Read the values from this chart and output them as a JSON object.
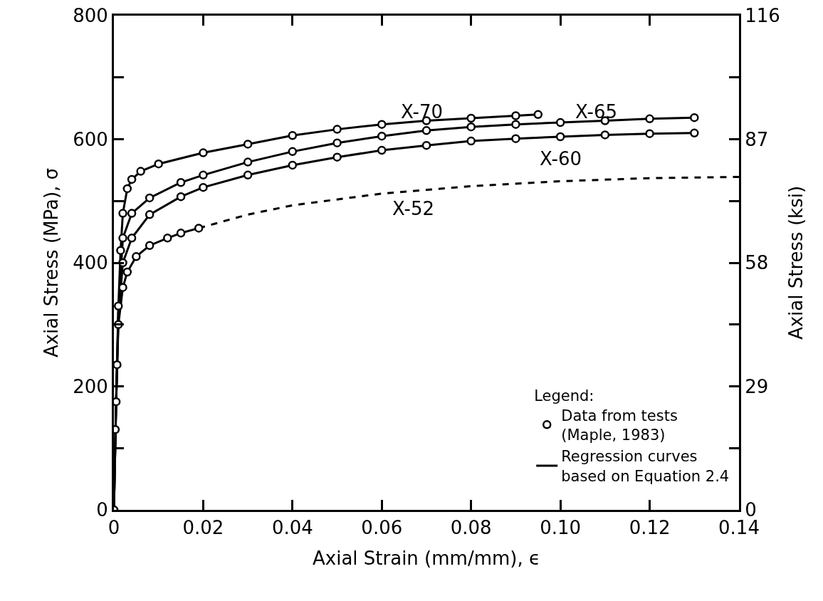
{
  "chart_data": {
    "type": "line",
    "xlabel": "Axial Strain (mm/mm), ϵ",
    "ylabel": "Axial Stress (MPa), σ",
    "y2label": "Axial Stress (ksi)",
    "legend_title": "Legend:",
    "legend": "bottom right",
    "xlim": [
      0,
      0.14
    ],
    "xticks": [
      0,
      0.02,
      0.04,
      0.06,
      0.08,
      {
        "value": 0.1,
        "label": "0.10"
      },
      0.12,
      0.14
    ],
    "ylim": [
      0,
      800
    ],
    "yticks": [
      0,
      {
        "value": 100,
        "label": null
      },
      200,
      {
        "value": 300,
        "label": null
      },
      400,
      {
        "value": 500,
        "label": null
      },
      600,
      {
        "value": 700,
        "label": null
      },
      800
    ],
    "y2lim": [
      0,
      116
    ],
    "y2ticks": [
      0,
      {
        "value": 14.5,
        "label": null
      },
      29,
      {
        "value": 43.5,
        "label": null
      },
      58,
      {
        "value": 72.5,
        "label": null
      },
      87,
      {
        "value": 101.5,
        "label": null
      },
      116
    ],
    "annotations": [
      "X-70",
      "X-65",
      "X-60",
      "X-52"
    ],
    "series": [
      {
        "color": "#000000",
        "marker": "none",
        "line_style": "solid",
        "name": "Regression curves\nbased on Equation 2.4",
        "x": [
          0,
          0.0005,
          0.001,
          0.0015,
          0.002,
          0.003,
          0.004,
          0.006,
          0.01,
          0.02,
          0.03,
          0.04,
          0.05,
          0.06,
          0.07,
          0.08,
          0.09,
          0.095
        ],
        "values": [
          0,
          175,
          330,
          420,
          480,
          520,
          535,
          548,
          560,
          578,
          592,
          606,
          616,
          624,
          630,
          634,
          638,
          640
        ]
      },
      {
        "color": "#000000",
        "marker": "none",
        "line_style": "solid",
        "x": [
          0,
          0.0005,
          0.001,
          0.002,
          0.004,
          0.008,
          0.015,
          0.02,
          0.03,
          0.04,
          0.05,
          0.06,
          0.07,
          0.08,
          0.09,
          0.1,
          0.11,
          0.12,
          0.13
        ],
        "values": [
          0,
          175,
          320,
          440,
          480,
          505,
          530,
          542,
          563,
          580,
          594,
          605,
          614,
          620,
          624,
          627,
          630,
          633,
          635
        ]
      },
      {
        "color": "#000000",
        "marker": "none",
        "line_style": "solid",
        "x": [
          0,
          0.0005,
          0.001,
          0.002,
          0.004,
          0.008,
          0.015,
          0.02,
          0.03,
          0.04,
          0.05,
          0.06,
          0.07,
          0.08,
          0.09,
          0.1,
          0.11,
          0.12,
          0.13
        ],
        "values": [
          0,
          175,
          310,
          400,
          440,
          478,
          507,
          522,
          542,
          558,
          571,
          582,
          590,
          597,
          601,
          604,
          607,
          609,
          610
        ]
      },
      {
        "color": "#000000",
        "marker": "none",
        "line_style": "solid",
        "x": [
          0,
          0.0005,
          0.001,
          0.002,
          0.003,
          0.005,
          0.008,
          0.012,
          0.015,
          0.019
        ],
        "values": [
          0,
          175,
          300,
          360,
          385,
          410,
          428,
          440,
          448,
          456
        ]
      },
      {
        "color": "#000000",
        "marker": "none",
        "line_style": "dashed",
        "x": [
          0.019,
          0.03,
          0.04,
          0.06,
          0.08,
          0.1,
          0.12,
          0.14
        ],
        "values": [
          456,
          478,
          493,
          512,
          524,
          532,
          537,
          539
        ]
      },
      {
        "type": "scatter",
        "color": "#000000",
        "marker": "circle",
        "name": "Data from tests\n(Maple, 1983)",
        "x": [
          0,
          0.0003,
          0.0005,
          0.0007,
          0.001,
          0.001,
          0.0015,
          0.002,
          0.003,
          0.004,
          0.006,
          0.01,
          0.02,
          0.03,
          0.04,
          0.05,
          0.06,
          0.07,
          0.08,
          0.09,
          0.095,
          0.002,
          0.004,
          0.008,
          0.015,
          0.02,
          0.03,
          0.04,
          0.05,
          0.06,
          0.07,
          0.08,
          0.09,
          0.1,
          0.11,
          0.12,
          0.13,
          0.002,
          0.004,
          0.008,
          0.015,
          0.02,
          0.03,
          0.04,
          0.05,
          0.06,
          0.07,
          0.08,
          0.09,
          0.1,
          0.11,
          0.12,
          0.13,
          0.002,
          0.003,
          0.005,
          0.008,
          0.012,
          0.015,
          0.019
        ],
        "values": [
          0,
          130,
          175,
          235,
          300,
          330,
          420,
          480,
          520,
          535,
          548,
          560,
          578,
          592,
          606,
          616,
          624,
          630,
          634,
          638,
          640,
          440,
          480,
          505,
          530,
          542,
          563,
          580,
          594,
          605,
          614,
          620,
          624,
          627,
          630,
          633,
          635,
          400,
          440,
          478,
          507,
          522,
          542,
          558,
          571,
          582,
          590,
          597,
          601,
          604,
          607,
          609,
          610,
          360,
          385,
          410,
          428,
          440,
          448,
          456
        ]
      }
    ]
  }
}
